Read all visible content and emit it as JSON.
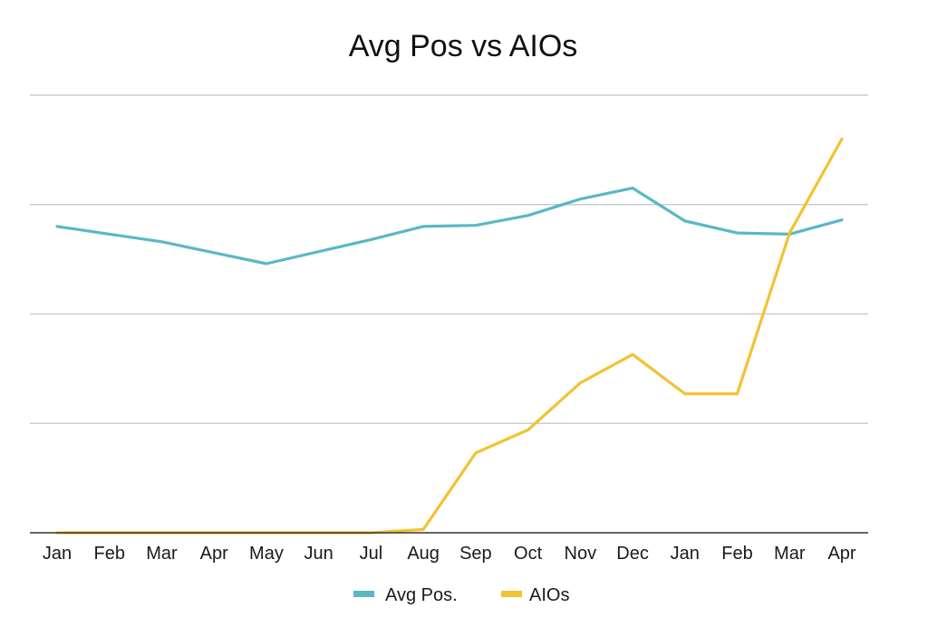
{
  "chart_data": {
    "type": "line",
    "title": "Avg Pos vs AIOs",
    "xlabel": "",
    "ylabel": "",
    "categories": [
      "Jan",
      "Feb",
      "Mar",
      "Apr",
      "May",
      "Jun",
      "Jul",
      "Aug",
      "Sep",
      "Oct",
      "Nov",
      "Dec",
      "Jan",
      "Feb",
      "Mar",
      "Apr"
    ],
    "ylim": [
      0,
      4
    ],
    "gridlines": [
      1,
      2,
      3,
      4
    ],
    "y_tick_labels_shown": false,
    "series": [
      {
        "name": "Avg Pos.",
        "color": "#5ab8c4",
        "values": [
          2.8,
          2.73,
          2.66,
          2.56,
          2.46,
          2.57,
          2.68,
          2.8,
          2.81,
          2.9,
          3.05,
          3.15,
          2.85,
          2.74,
          2.73,
          2.86
        ]
      },
      {
        "name": "AIOs",
        "color": "#f2c233",
        "values": [
          0,
          0,
          0,
          0,
          0,
          0,
          0,
          0.03,
          0.73,
          0.94,
          1.37,
          1.63,
          1.27,
          1.27,
          2.74,
          3.6
        ]
      }
    ],
    "legend": {
      "position": "bottom-center",
      "entries": [
        "Avg Pos.",
        "AIOs"
      ]
    },
    "grid": true,
    "axis_color": "#333333",
    "grid_color": "#cccccc"
  }
}
